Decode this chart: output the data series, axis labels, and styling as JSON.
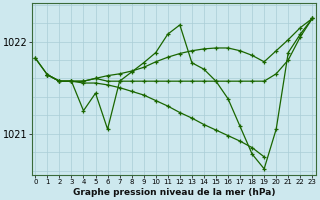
{
  "title": "Graphe pression niveau de la mer (hPa)",
  "bg_color": "#cde8ee",
  "grid_color": "#aacdd6",
  "line_color": "#1a6600",
  "yticks": [
    1021.0,
    1022.0
  ],
  "ylim": [
    1020.55,
    1022.42
  ],
  "xlim": [
    -0.3,
    23.3
  ],
  "lines": [
    {
      "x": [
        0,
        1,
        2,
        3,
        4,
        5,
        6,
        7,
        8,
        9,
        10,
        11,
        12,
        13,
        14,
        15,
        16,
        17,
        18,
        19,
        20,
        21,
        22,
        23
      ],
      "y": [
        1021.82,
        1021.64,
        1021.57,
        1021.57,
        1021.25,
        1021.44,
        1021.05,
        1021.57,
        1021.67,
        1021.77,
        1021.88,
        1022.08,
        1022.18,
        1021.77,
        1021.7,
        1021.57,
        1021.38,
        1021.08,
        1020.78,
        1020.62,
        1021.05,
        1021.88,
        1022.08,
        1022.25
      ]
    },
    {
      "x": [
        1,
        2,
        3,
        4,
        5,
        6,
        7,
        8,
        9,
        10,
        11,
        12,
        13,
        14,
        15,
        16,
        17,
        18,
        19,
        20,
        21,
        22,
        23
      ],
      "y": [
        1021.64,
        1021.57,
        1021.57,
        1021.57,
        1021.6,
        1021.63,
        1021.65,
        1021.68,
        1021.72,
        1021.78,
        1021.83,
        1021.87,
        1021.9,
        1021.92,
        1021.93,
        1021.93,
        1021.9,
        1021.85,
        1021.78,
        1021.9,
        1022.02,
        1022.15,
        1022.25
      ]
    },
    {
      "x": [
        1,
        2,
        3,
        4,
        5,
        6,
        7,
        8,
        9,
        10,
        11,
        12,
        13,
        14,
        15,
        16,
        17,
        18,
        19
      ],
      "y": [
        1021.64,
        1021.57,
        1021.57,
        1021.55,
        1021.55,
        1021.53,
        1021.5,
        1021.46,
        1021.42,
        1021.36,
        1021.3,
        1021.23,
        1021.17,
        1021.1,
        1021.04,
        1020.98,
        1020.92,
        1020.85,
        1020.75
      ]
    },
    {
      "x": [
        0,
        1,
        2,
        3,
        4,
        5,
        6,
        7,
        8,
        9,
        10,
        11,
        12,
        13,
        14,
        15,
        16,
        17,
        18,
        19,
        20,
        21,
        22,
        23
      ],
      "y": [
        1021.82,
        1021.64,
        1021.57,
        1021.57,
        1021.57,
        1021.6,
        1021.57,
        1021.57,
        1021.57,
        1021.57,
        1021.57,
        1021.57,
        1021.57,
        1021.57,
        1021.57,
        1021.57,
        1021.57,
        1021.57,
        1021.57,
        1021.57,
        1021.65,
        1021.8,
        1022.05,
        1022.25
      ]
    }
  ]
}
